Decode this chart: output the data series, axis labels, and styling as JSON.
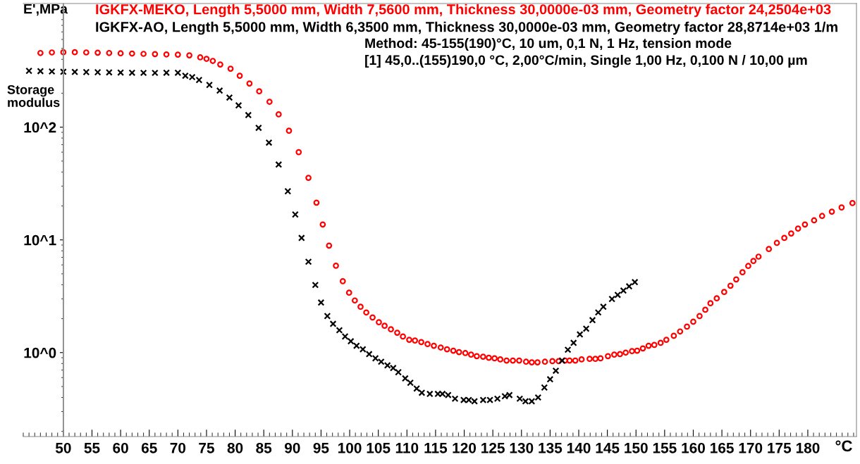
{
  "chart_data": {
    "type": "scatter",
    "xlabel": "°C",
    "ylabel": "E',MPa",
    "annotations": [
      "Storage\nmodulus",
      "Method: 45-155(190)°C, 10 um, 0,1 N, 1 Hz, tension mode",
      "[1] 45,0..(155)190,0 °C, 2,00°C/min, Single 1,00 Hz, 0,100 N / 10,00 µm"
    ],
    "log": "y",
    "grid": false,
    "legend": "top",
    "xlim": [
      43,
      188.5
    ],
    "xticks": [
      50,
      55,
      60,
      65,
      70,
      75,
      80,
      85,
      90,
      95,
      100,
      105,
      110,
      115,
      120,
      125,
      130,
      135,
      140,
      145,
      150,
      155,
      160,
      165,
      170,
      175,
      180
    ],
    "ylim": [
      0.18,
      1250
    ],
    "yticks": [
      {
        "value": 1,
        "label": "10^0"
      },
      {
        "value": 10,
        "label": "10^1"
      },
      {
        "value": 100,
        "label": "10^2"
      }
    ],
    "ref_lines": [
      {
        "axis": "x",
        "value": 50,
        "color": "#888888",
        "line_style": "solid"
      }
    ],
    "series": [
      {
        "name": "IGKFX-MEKO, Length 5,5000 mm, Width 7,5600 mm, Thickness 30,0000e-03 mm, Geometry factor 24,2504e+03",
        "color": "#ff0000",
        "marker": "circle",
        "x": [
          46,
          48,
          50,
          52,
          54,
          56,
          58,
          60,
          62,
          64,
          66,
          68,
          70,
          72,
          73.9,
          75.0,
          76.1,
          77.4,
          79.2,
          80.8,
          82.5,
          84.2,
          86.0,
          87.6,
          89.4,
          91.1,
          92.8,
          94.2,
          95.3,
          96.4,
          97.6,
          98.8,
          99.9,
          100.9,
          101.9,
          102.9,
          104.0,
          105.1,
          106.1,
          107.2,
          108.3,
          109.3,
          110.4,
          111.4,
          112.5,
          113.6,
          114.7,
          115.9,
          117.0,
          118.1,
          119.1,
          120.2,
          121.2,
          122.2,
          123.3,
          124.3,
          125.3,
          126.3,
          127.4,
          128.5,
          129.6,
          130.8,
          131.8,
          132.8,
          134.1,
          135.4,
          136.5,
          137.6,
          138.4,
          139.4,
          140.5,
          141.9,
          142.9,
          143.8,
          145.1,
          146.2,
          147.2,
          148.2,
          149.3,
          150.2,
          151.2,
          152.2,
          153.2,
          154.3,
          155.3,
          156.6,
          157.7,
          158.9,
          160.0,
          161.1,
          162.1,
          163.0,
          164.1,
          165.4,
          166.5,
          167.5,
          168.6,
          169.6,
          170.5,
          171.4,
          173.2,
          174.6,
          175.9,
          177.1,
          178.3,
          179.5,
          181.1,
          182.5,
          184.2,
          185.9,
          187.8
        ],
        "values": [
          455,
          460,
          462,
          462,
          460,
          458,
          455,
          452,
          450,
          447,
          445,
          442,
          440,
          434,
          416,
          404,
          387,
          360,
          330,
          286,
          244,
          208,
          168,
          130,
          93,
          60,
          35.5,
          21.4,
          13.7,
          8.9,
          5.9,
          4.3,
          3.4,
          2.9,
          2.55,
          2.27,
          2.05,
          1.86,
          1.73,
          1.61,
          1.5,
          1.39,
          1.3,
          1.28,
          1.24,
          1.19,
          1.15,
          1.11,
          1.07,
          1.04,
          1.01,
          0.99,
          0.96,
          0.93,
          0.92,
          0.9,
          0.89,
          0.87,
          0.85,
          0.85,
          0.85,
          0.83,
          0.82,
          0.82,
          0.83,
          0.84,
          0.84,
          0.85,
          0.85,
          0.85,
          0.87,
          0.88,
          0.88,
          0.89,
          0.93,
          0.96,
          0.97,
          1.0,
          1.03,
          1.04,
          1.09,
          1.15,
          1.17,
          1.22,
          1.3,
          1.41,
          1.54,
          1.7,
          1.88,
          2.11,
          2.4,
          2.74,
          3.03,
          3.45,
          3.92,
          4.46,
          5.16,
          5.87,
          6.5,
          7.1,
          8.3,
          9.4,
          10.4,
          11.4,
          12.6,
          13.7,
          14.9,
          16.3,
          17.8,
          19.4,
          21.2
        ]
      },
      {
        "name": "IGKFX-AO, Length 5,5000 mm, Width 6,3500 mm, Thickness 30,0000e-03 mm, Geometry factor 28,8714e+03 1/m",
        "color": "#000000",
        "marker": "cross",
        "x": [
          44,
          46,
          48,
          50,
          52,
          54,
          56,
          58,
          60,
          62,
          64,
          66,
          68,
          70,
          71.3,
          72.5,
          73.7,
          75.5,
          77.3,
          79.0,
          80.6,
          82.3,
          84.1,
          85.9,
          87.6,
          89.2,
          90.5,
          91.6,
          92.8,
          94.0,
          95.0,
          96.1,
          97.1,
          98.2,
          99.2,
          100.2,
          101.2,
          102.3,
          103.4,
          104.5,
          105.5,
          106.6,
          107.6,
          108.5,
          109.7,
          110.6,
          111.7,
          112.6,
          114.0,
          115.4,
          116.2,
          117.2,
          118.4,
          119.9,
          120.8,
          121.8,
          123.3,
          124.5,
          125.8,
          127.1,
          127.9,
          129.7,
          130.7,
          131.8,
          132.9,
          134.0,
          135.0,
          136.0,
          137.1,
          138.1,
          139.1,
          140.2,
          141.3,
          142.4,
          143.4,
          144.3,
          145.8,
          146.8,
          147.8,
          148.8,
          149.8
        ],
        "values": [
          316,
          314,
          312,
          310,
          309,
          308,
          307,
          306,
          305,
          304,
          303,
          303,
          304,
          304,
          286,
          278,
          262,
          237,
          211,
          183,
          156,
          128,
          98.6,
          72.9,
          46.6,
          27,
          16.8,
          10.4,
          6.4,
          3.98,
          2.78,
          2.11,
          1.8,
          1.58,
          1.39,
          1.26,
          1.15,
          1.07,
          0.97,
          0.89,
          0.83,
          0.77,
          0.73,
          0.67,
          0.59,
          0.54,
          0.48,
          0.44,
          0.43,
          0.43,
          0.43,
          0.42,
          0.39,
          0.38,
          0.38,
          0.37,
          0.38,
          0.38,
          0.39,
          0.41,
          0.42,
          0.39,
          0.37,
          0.37,
          0.4,
          0.49,
          0.58,
          0.69,
          0.85,
          1.06,
          1.22,
          1.45,
          1.63,
          1.94,
          2.27,
          2.55,
          2.99,
          3.25,
          3.55,
          3.87,
          4.22
        ]
      }
    ]
  }
}
